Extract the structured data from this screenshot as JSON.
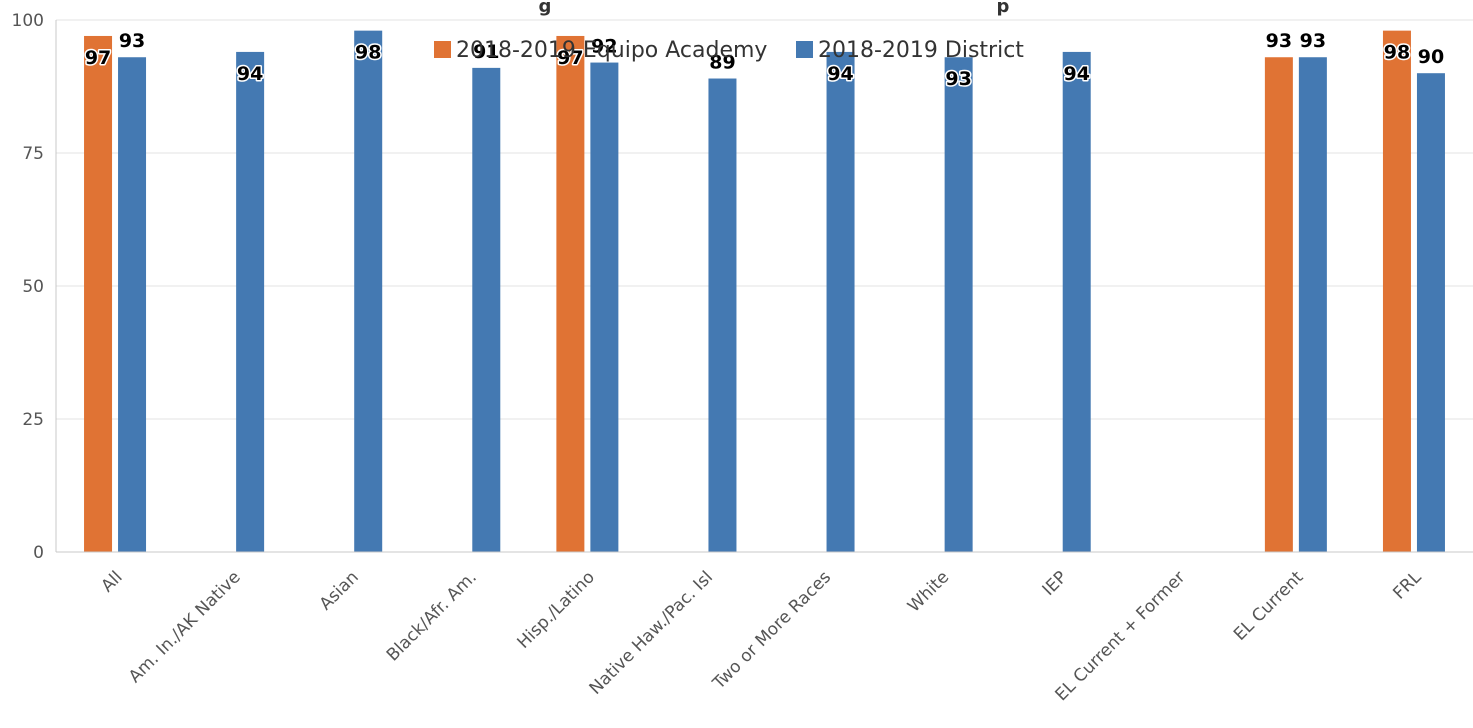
{
  "chart_data": {
    "type": "bar",
    "title": "g",
    "title_secondary": "p",
    "categories": [
      "All",
      "Am. In./AK Native",
      "Asian",
      "Black/Afr. Am.",
      "Hisp./Latino",
      "Native Haw./Pac. Isl",
      "Two or More Races",
      "White",
      "IEP",
      "EL Current + Former",
      "EL Current",
      "FRL"
    ],
    "series": [
      {
        "name": "2018-2019 Equipo Academy",
        "color": "#E07334",
        "values": [
          97,
          null,
          null,
          null,
          97,
          null,
          null,
          null,
          null,
          null,
          93,
          98
        ],
        "labels": [
          "97",
          "",
          "",
          "",
          "97",
          "",
          "",
          "",
          "",
          "",
          "93",
          "98"
        ]
      },
      {
        "name": "2018-2019 District",
        "color": "#4479B2",
        "values": [
          93,
          94,
          98,
          91,
          92,
          89,
          94,
          93,
          94,
          null,
          93,
          90
        ],
        "labels": [
          "93",
          "94",
          "98",
          "91",
          "92",
          "89",
          "94",
          "93",
          "94",
          "",
          "93",
          "90"
        ]
      }
    ],
    "yticks": [
      "0",
      "25",
      "50",
      "75",
      "100"
    ],
    "ylim": [
      0,
      100
    ],
    "xlabel": "",
    "ylabel": "",
    "grid": true,
    "legend_position": "top-center"
  }
}
